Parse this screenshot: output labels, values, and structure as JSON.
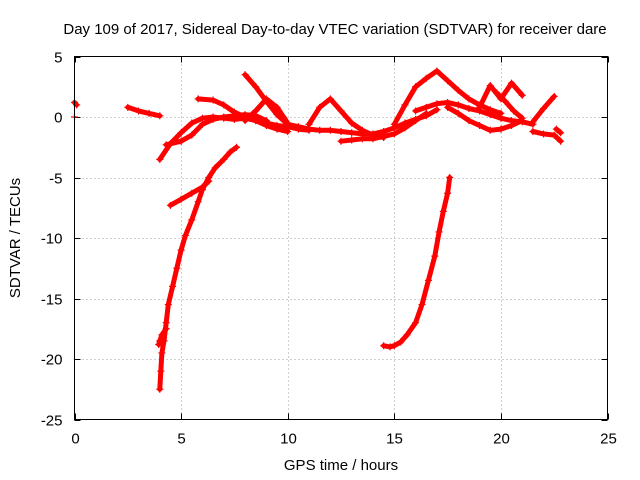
{
  "chart_data": {
    "type": "scatter",
    "title": "Day 109 of 2017, Sidereal Day-to-day VTEC variation (SDTVAR) for receiver dare",
    "xlabel": "GPS time / hours",
    "ylabel": "SDTVAR / TECUs",
    "xlim": [
      0,
      25
    ],
    "ylim": [
      -25,
      5
    ],
    "xticks": [
      0,
      5,
      10,
      15,
      20,
      25
    ],
    "yticks": [
      5,
      0,
      -5,
      -10,
      -15,
      -20,
      -25
    ],
    "grid": true,
    "marker": "+",
    "color": "#ff0000",
    "series": [
      {
        "name": "segment-1",
        "x": [
          0.0,
          0.1
        ],
        "y": [
          1.2,
          1.0
        ]
      },
      {
        "name": "segment-2",
        "x": [
          0.0
        ],
        "y": [
          0.0
        ]
      },
      {
        "name": "segment-3",
        "x": [
          2.5,
          3.0,
          3.5,
          4.0
        ],
        "y": [
          0.8,
          0.5,
          0.3,
          0.1
        ]
      },
      {
        "name": "segment-4",
        "x": [
          4.0,
          4.5,
          5.0,
          5.5,
          6.0,
          6.5,
          7.0,
          7.5,
          8.0,
          8.5,
          9.0,
          9.5,
          10.0
        ],
        "y": [
          -3.5,
          -2.2,
          -1.3,
          -0.5,
          -0.1,
          0.0,
          -0.1,
          -0.2,
          -0.1,
          -0.3,
          -0.7,
          -1.0,
          -1.2
        ]
      },
      {
        "name": "segment-5",
        "x": [
          4.3,
          5.0,
          5.5,
          6.0,
          6.5,
          7.0,
          7.5,
          8.0,
          8.5,
          9.0
        ],
        "y": [
          -2.3,
          -2.0,
          -1.5,
          -0.6,
          -0.2,
          0.0,
          0.1,
          0.2,
          0.1,
          -0.3
        ]
      },
      {
        "name": "segment-6",
        "x": [
          5.8,
          6.5,
          7.0,
          7.5,
          8.0,
          8.5,
          9.0,
          9.5,
          10.0,
          10.5,
          11.0
        ],
        "y": [
          1.5,
          1.4,
          1.0,
          0.4,
          0.0,
          -0.3,
          -0.5,
          -0.7,
          -0.8,
          -1.0,
          -1.1
        ]
      },
      {
        "name": "segment-7",
        "x": [
          8.0,
          8.5,
          9.0,
          9.5,
          10.0
        ],
        "y": [
          3.5,
          2.5,
          1.3,
          0.2,
          -0.6
        ]
      },
      {
        "name": "segment-8",
        "x": [
          8.0,
          8.5,
          9.0,
          9.5,
          10.0
        ],
        "y": [
          -0.3,
          0.5,
          1.5,
          0.8,
          -0.5
        ]
      },
      {
        "name": "segment-9",
        "x": [
          10.0,
          10.5,
          11.0,
          11.5,
          12.0,
          12.5,
          13.0,
          13.5,
          14.0,
          14.5,
          15.0,
          15.5,
          16.0,
          16.5,
          17.0
        ],
        "y": [
          -0.6,
          -0.8,
          -1.0,
          -1.1,
          -1.1,
          -1.2,
          -1.3,
          -1.4,
          -1.4,
          -1.2,
          -0.9,
          -0.5,
          -0.2,
          0.1,
          0.6
        ]
      },
      {
        "name": "segment-10",
        "x": [
          11.0,
          11.5,
          12.0,
          12.5,
          13.0,
          13.5,
          14.0,
          14.5
        ],
        "y": [
          -0.6,
          0.8,
          1.5,
          0.5,
          -0.5,
          -1.1,
          -1.5,
          -1.7
        ]
      },
      {
        "name": "segment-11",
        "x": [
          12.5,
          13.0,
          13.5,
          14.0,
          14.5,
          15.0,
          15.5,
          16.0,
          16.5
        ],
        "y": [
          -2.0,
          -1.9,
          -1.8,
          -1.8,
          -1.6,
          -1.4,
          -0.9,
          -0.3,
          0.3
        ]
      },
      {
        "name": "segment-12",
        "x": [
          15.0,
          15.5,
          16.0,
          16.5,
          17.0,
          17.5,
          18.0,
          18.5,
          19.0,
          19.5,
          20.0
        ],
        "y": [
          -0.6,
          1.0,
          2.5,
          3.2,
          3.8,
          3.0,
          2.2,
          1.5,
          1.0,
          0.6,
          0.3
        ]
      },
      {
        "name": "segment-13",
        "x": [
          16.0,
          16.5,
          17.0,
          17.5,
          18.0,
          18.5,
          19.0,
          19.5,
          20.0,
          20.5,
          21.0,
          21.5
        ],
        "y": [
          0.5,
          0.8,
          1.1,
          1.2,
          1.0,
          0.7,
          0.5,
          0.2,
          -0.1,
          -0.3,
          -0.4,
          -0.6
        ]
      },
      {
        "name": "segment-14",
        "x": [
          17.5,
          18.0,
          18.5,
          19.0,
          19.5,
          20.0,
          20.5,
          21.0
        ],
        "y": [
          0.8,
          0.3,
          -0.3,
          -0.7,
          -1.1,
          -1.0,
          -0.7,
          -0.3
        ]
      },
      {
        "name": "segment-15",
        "x": [
          19.0,
          19.5,
          20.0,
          20.5,
          21.0
        ],
        "y": [
          0.8,
          2.6,
          1.5,
          2.8,
          1.8
        ]
      },
      {
        "name": "segment-16",
        "x": [
          19.8,
          20.2,
          20.6,
          21.0
        ],
        "y": [
          2.0,
          1.3,
          0.5,
          -0.1
        ]
      },
      {
        "name": "segment-17",
        "x": [
          21.5,
          22.0,
          22.5
        ],
        "y": [
          -0.4,
          0.7,
          1.7
        ]
      },
      {
        "name": "segment-18",
        "x": [
          21.5,
          22.0,
          22.5,
          22.8
        ],
        "y": [
          -1.2,
          -1.4,
          -1.5,
          -2.0
        ]
      },
      {
        "name": "segment-19",
        "x": [
          22.6,
          22.8
        ],
        "y": [
          -1.0,
          -1.3
        ]
      },
      {
        "name": "segment-20",
        "x": [
          4.0,
          4.05,
          4.1,
          4.2,
          4.3,
          4.4,
          4.6,
          4.8,
          5.0,
          5.2,
          5.5,
          5.8,
          6.0,
          6.3,
          6.6,
          7.0,
          7.3,
          7.6
        ],
        "y": [
          -22.5,
          -21.0,
          -19.5,
          -18.5,
          -17.0,
          -15.5,
          -14.0,
          -12.5,
          -11.0,
          -9.8,
          -8.5,
          -7.0,
          -6.0,
          -5.0,
          -4.2,
          -3.5,
          -2.9,
          -2.5
        ]
      },
      {
        "name": "segment-21",
        "x": [
          3.95,
          4.0,
          4.1,
          4.3
        ],
        "y": [
          -18.8,
          -18.5,
          -18.0,
          -17.5
        ]
      },
      {
        "name": "segment-22",
        "x": [
          4.5,
          5.0,
          5.5,
          6.0,
          6.3
        ],
        "y": [
          -7.3,
          -6.8,
          -6.3,
          -5.8,
          -5.3
        ]
      },
      {
        "name": "segment-23",
        "x": [
          14.5,
          14.8,
          15.0,
          15.3,
          15.6,
          16.0,
          16.3,
          16.6,
          16.9,
          17.1,
          17.3,
          17.5,
          17.6
        ],
        "y": [
          -18.9,
          -19.0,
          -18.9,
          -18.6,
          -18.0,
          -17.0,
          -15.5,
          -13.5,
          -11.5,
          -9.5,
          -7.8,
          -6.3,
          -5.0
        ]
      }
    ]
  }
}
